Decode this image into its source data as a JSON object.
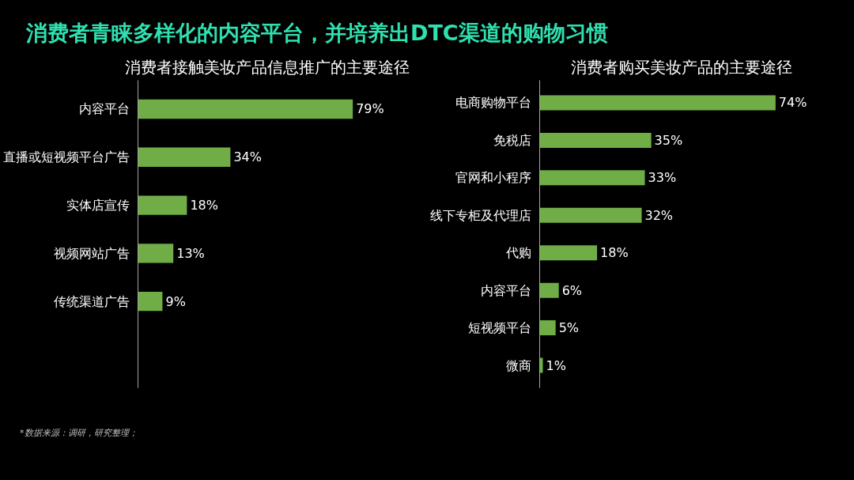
{
  "chart_data": [
    {
      "type": "bar",
      "orientation": "horizontal",
      "title": "消费者青睐多样化的内容平台，并培养出DTC渠道的购物习惯",
      "subtitle": "消费者接触美妆产品信息推广的主要途径",
      "categories": [
        "内容平台",
        "直播或短视频平台广告",
        "实体店宣传",
        "视频网站广告",
        "传统渠道广告"
      ],
      "values": [
        79,
        34,
        18,
        13,
        9
      ],
      "value_labels": [
        "79%",
        "34%",
        "18%",
        "13%",
        "9%"
      ],
      "color": "#70ad47",
      "tick_labels": "y",
      "grid": false,
      "annotations": [
        "*数据来源：调研，研究整理；"
      ]
    },
    {
      "type": "bar",
      "orientation": "horizontal",
      "title": "消费者购买美妆产品的主要途径",
      "categories": [
        "电商购物平台",
        "免税店",
        "官网和小程序",
        "线下专柜及代理店",
        "代购",
        "内容平台",
        "短视频平台",
        "微商"
      ],
      "values": [
        74,
        35,
        33,
        32,
        18,
        6,
        5,
        1
      ],
      "value_labels": [
        "74%",
        "35%",
        "33%",
        "32%",
        "18%",
        "6%",
        "5%",
        "1%"
      ],
      "color": "#70ad47",
      "tick_labels": "y",
      "grid": false
    }
  ]
}
